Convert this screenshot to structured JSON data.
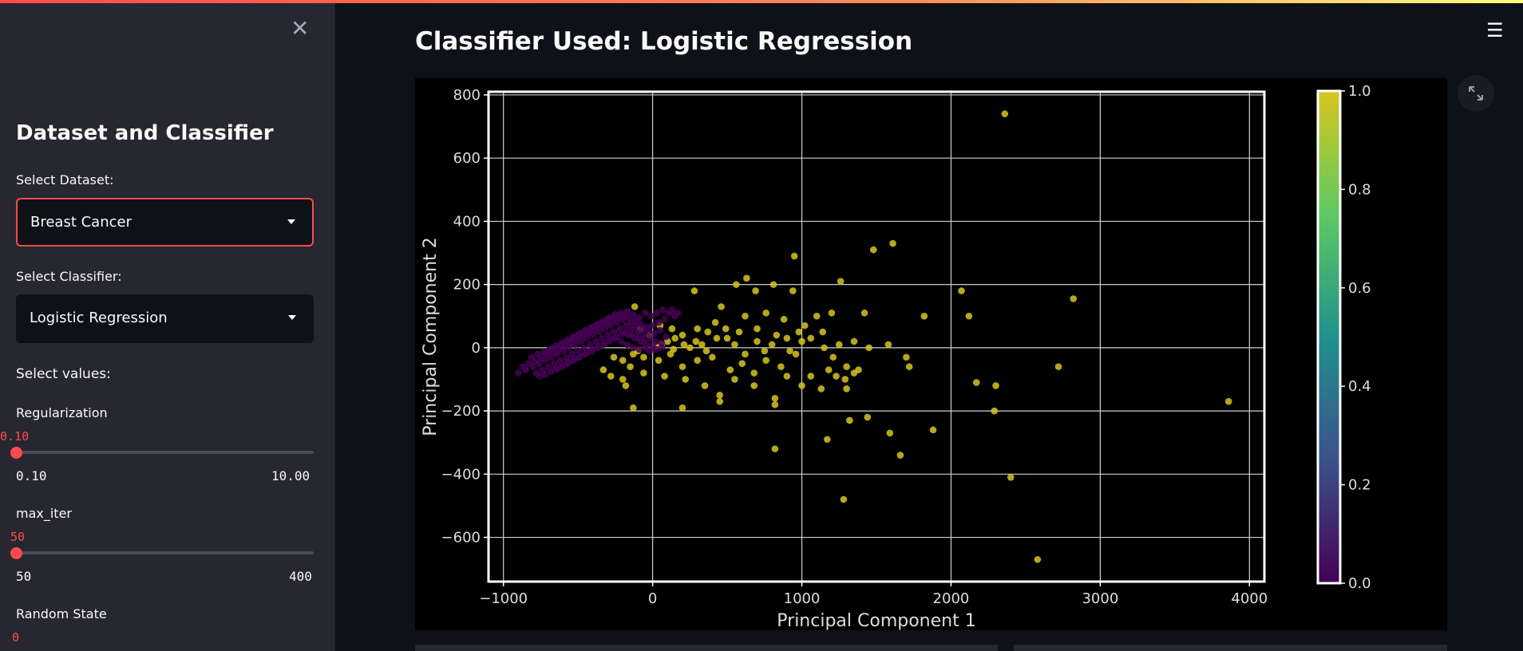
{
  "sidebar": {
    "title": "Dataset and Classifier",
    "dataset_label": "Select Dataset:",
    "dataset_value": "Breast Cancer",
    "classifier_label": "Select Classifier:",
    "classifier_value": "Logistic Regression",
    "values_label": "Select values:",
    "sliders": [
      {
        "label": "Regularization",
        "value": "0.10",
        "min": "0.10",
        "max": "10.00"
      },
      {
        "label": "max_iter",
        "value": "50",
        "min": "50",
        "max": "400"
      },
      {
        "label": "Random State",
        "value": "0"
      }
    ]
  },
  "main": {
    "title": "Classifier Used: Logistic Regression"
  },
  "colors": {
    "accent": "#ff4b4b",
    "sidebar_bg": "#262730",
    "app_bg": "#0e1117"
  },
  "icons": [
    "close-icon",
    "hamburger-menu-icon",
    "expand-icon",
    "caret-down-icon"
  ],
  "chart_data": {
    "type": "scatter",
    "xlabel": "Principal Component 1",
    "ylabel": "Principal Component 2",
    "xlim": [
      -1100,
      4100
    ],
    "ylim": [
      -740,
      810
    ],
    "xticks": [
      -1000,
      0,
      1000,
      2000,
      3000,
      4000
    ],
    "xtick_labels": [
      "−1000",
      "0",
      "1000",
      "2000",
      "3000",
      "4000"
    ],
    "yticks": [
      -600,
      -400,
      -200,
      0,
      200,
      400,
      600,
      800
    ],
    "ytick_labels": [
      "−600",
      "−400",
      "−200",
      "0",
      "200",
      "400",
      "600",
      "800"
    ],
    "grid": true,
    "colorbar": {
      "min": 0.0,
      "max": 1.0,
      "ticks": [
        "0.0",
        "0.2",
        "0.4",
        "0.6",
        "0.8",
        "1.0"
      ],
      "colormap": "viridis"
    },
    "series": [
      {
        "class": 1,
        "color": "#d6c61e",
        "points": [
          [
            2360,
            740
          ],
          [
            1610,
            330
          ],
          [
            1480,
            310
          ],
          [
            950,
            290
          ],
          [
            630,
            220
          ],
          [
            560,
            200
          ],
          [
            810,
            200
          ],
          [
            2820,
            155
          ],
          [
            1260,
            210
          ],
          [
            280,
            180
          ],
          [
            690,
            180
          ],
          [
            940,
            180
          ],
          [
            1820,
            100
          ],
          [
            2070,
            180
          ],
          [
            2120,
            100
          ],
          [
            1420,
            110
          ],
          [
            130,
            60
          ],
          [
            460,
            130
          ],
          [
            620,
            100
          ],
          [
            760,
            110
          ],
          [
            1100,
            100
          ],
          [
            1200,
            110
          ],
          [
            1020,
            70
          ],
          [
            880,
            90
          ],
          [
            420,
            80
          ],
          [
            370,
            50
          ],
          [
            300,
            60
          ],
          [
            200,
            40
          ],
          [
            150,
            30
          ],
          [
            100,
            20
          ],
          [
            60,
            10
          ],
          [
            20,
            5
          ],
          [
            250,
            0
          ],
          [
            330,
            10
          ],
          [
            500,
            30
          ],
          [
            580,
            50
          ],
          [
            700,
            20
          ],
          [
            800,
            10
          ],
          [
            900,
            30
          ],
          [
            1000,
            20
          ],
          [
            1150,
            0
          ],
          [
            1250,
            10
          ],
          [
            1350,
            20
          ],
          [
            1450,
            0
          ],
          [
            1580,
            10
          ],
          [
            -130,
            -20
          ],
          [
            -60,
            -30
          ],
          [
            40,
            -40
          ],
          [
            120,
            -20
          ],
          [
            200,
            -60
          ],
          [
            300,
            -40
          ],
          [
            400,
            -30
          ],
          [
            520,
            -70
          ],
          [
            600,
            -50
          ],
          [
            680,
            -80
          ],
          [
            760,
            -40
          ],
          [
            860,
            -60
          ],
          [
            960,
            -20
          ],
          [
            1060,
            -90
          ],
          [
            1180,
            -70
          ],
          [
            1300,
            -60
          ],
          [
            1380,
            -70
          ],
          [
            1700,
            -30
          ],
          [
            1720,
            -60
          ],
          [
            -150,
            -60
          ],
          [
            -60,
            -80
          ],
          [
            80,
            -90
          ],
          [
            220,
            -100
          ],
          [
            350,
            -120
          ],
          [
            450,
            -150
          ],
          [
            550,
            -100
          ],
          [
            680,
            -120
          ],
          [
            820,
            -160
          ],
          [
            900,
            -90
          ],
          [
            1000,
            -120
          ],
          [
            1130,
            -130
          ],
          [
            1230,
            -90
          ],
          [
            1300,
            -130
          ],
          [
            2720,
            -60
          ],
          [
            2170,
            -110
          ],
          [
            2300,
            -120
          ],
          [
            -200,
            -100
          ],
          [
            -130,
            -190
          ],
          [
            200,
            -190
          ],
          [
            450,
            -170
          ],
          [
            820,
            -180
          ],
          [
            1320,
            -230
          ],
          [
            1440,
            -220
          ],
          [
            1590,
            -270
          ],
          [
            1660,
            -340
          ],
          [
            1880,
            -260
          ],
          [
            2290,
            -200
          ],
          [
            2400,
            -410
          ],
          [
            3860,
            -170
          ],
          [
            1280,
            -480
          ],
          [
            2580,
            -670
          ],
          [
            820,
            -320
          ],
          [
            1170,
            -290
          ],
          [
            -120,
            130
          ],
          [
            -80,
            60
          ],
          [
            -200,
            -40
          ],
          [
            -260,
            -30
          ],
          [
            -330,
            -70
          ],
          [
            -280,
            -90
          ],
          [
            -180,
            -120
          ],
          [
            -100,
            -10
          ],
          [
            -20,
            40
          ],
          [
            50,
            70
          ],
          [
            140,
            -5
          ],
          [
            210,
            10
          ],
          [
            290,
            20
          ],
          [
            360,
            -10
          ],
          [
            430,
            30
          ],
          [
            490,
            60
          ],
          [
            550,
            10
          ],
          [
            620,
            -20
          ],
          [
            700,
            60
          ],
          [
            750,
            -10
          ],
          [
            830,
            40
          ],
          [
            920,
            -10
          ],
          [
            980,
            50
          ],
          [
            1060,
            30
          ],
          [
            1140,
            50
          ],
          [
            1210,
            -30
          ],
          [
            1290,
            -100
          ],
          [
            1350,
            -80
          ]
        ]
      },
      {
        "class": 0,
        "color": "#440154",
        "points": [
          [
            -850,
            -70
          ],
          [
            -800,
            -60
          ],
          [
            -760,
            -50
          ],
          [
            -720,
            -40
          ],
          [
            -680,
            -30
          ],
          [
            -640,
            -20
          ],
          [
            -600,
            -10
          ],
          [
            -560,
            0
          ],
          [
            -520,
            10
          ],
          [
            -480,
            20
          ],
          [
            -440,
            30
          ],
          [
            -400,
            40
          ],
          [
            -360,
            50
          ],
          [
            -320,
            60
          ],
          [
            -280,
            70
          ],
          [
            -240,
            80
          ],
          [
            -200,
            90
          ],
          [
            -160,
            95
          ],
          [
            -120,
            85
          ],
          [
            -80,
            75
          ],
          [
            -40,
            65
          ],
          [
            0,
            70
          ],
          [
            40,
            80
          ],
          [
            80,
            90
          ],
          [
            -830,
            -50
          ],
          [
            -790,
            -45
          ],
          [
            -750,
            -35
          ],
          [
            -710,
            -25
          ],
          [
            -670,
            -15
          ],
          [
            -630,
            -5
          ],
          [
            -590,
            5
          ],
          [
            -550,
            15
          ],
          [
            -510,
            25
          ],
          [
            -470,
            35
          ],
          [
            -430,
            45
          ],
          [
            -390,
            55
          ],
          [
            -350,
            65
          ],
          [
            -310,
            75
          ],
          [
            -270,
            85
          ],
          [
            -230,
            95
          ],
          [
            -190,
            100
          ],
          [
            -150,
            80
          ],
          [
            -110,
            70
          ],
          [
            -70,
            60
          ],
          [
            -30,
            50
          ],
          [
            10,
            45
          ],
          [
            50,
            55
          ],
          [
            90,
            35
          ],
          [
            -780,
            -80
          ],
          [
            -740,
            -70
          ],
          [
            -700,
            -60
          ],
          [
            -660,
            -50
          ],
          [
            -620,
            -40
          ],
          [
            -580,
            -30
          ],
          [
            -540,
            -20
          ],
          [
            -500,
            -10
          ],
          [
            -460,
            0
          ],
          [
            -420,
            10
          ],
          [
            -380,
            20
          ],
          [
            -340,
            30
          ],
          [
            -300,
            40
          ],
          [
            -260,
            50
          ],
          [
            -220,
            60
          ],
          [
            -180,
            70
          ],
          [
            -140,
            60
          ],
          [
            -100,
            50
          ],
          [
            -60,
            40
          ],
          [
            -20,
            30
          ],
          [
            20,
            20
          ],
          [
            60,
            15
          ],
          [
            -810,
            -30
          ],
          [
            -770,
            -20
          ],
          [
            -730,
            -15
          ],
          [
            -690,
            -5
          ],
          [
            -650,
            5
          ],
          [
            -610,
            15
          ],
          [
            -570,
            25
          ],
          [
            -530,
            35
          ],
          [
            -490,
            45
          ],
          [
            -450,
            55
          ],
          [
            -410,
            65
          ],
          [
            -370,
            75
          ],
          [
            -330,
            85
          ],
          [
            -290,
            95
          ],
          [
            -250,
            105
          ],
          [
            -210,
            110
          ],
          [
            -170,
            115
          ],
          [
            -130,
            105
          ],
          [
            -90,
            95
          ],
          [
            -50,
            110
          ],
          [
            -10,
            100
          ],
          [
            30,
            110
          ],
          [
            70,
            120
          ],
          [
            110,
            110
          ],
          [
            150,
            100
          ],
          [
            -760,
            -90
          ],
          [
            -720,
            -85
          ],
          [
            -680,
            -75
          ],
          [
            -640,
            -65
          ],
          [
            -600,
            -55
          ],
          [
            -560,
            -45
          ],
          [
            -520,
            -35
          ],
          [
            -480,
            -25
          ],
          [
            -440,
            -15
          ],
          [
            -400,
            -5
          ],
          [
            -360,
            5
          ],
          [
            -320,
            15
          ],
          [
            -280,
            25
          ],
          [
            -240,
            35
          ],
          [
            -200,
            45
          ],
          [
            -160,
            40
          ],
          [
            -120,
            30
          ],
          [
            -80,
            20
          ],
          [
            -40,
            10
          ],
          [
            0,
            5
          ],
          [
            -700,
            -10
          ],
          [
            -660,
            0
          ],
          [
            -620,
            10
          ],
          [
            -580,
            20
          ],
          [
            -540,
            30
          ],
          [
            -500,
            40
          ],
          [
            -460,
            50
          ],
          [
            -420,
            60
          ],
          [
            -380,
            70
          ],
          [
            -340,
            80
          ],
          [
            -300,
            90
          ],
          [
            -260,
            100
          ],
          [
            -220,
            105
          ],
          [
            -180,
            50
          ],
          [
            -140,
            40
          ],
          [
            -100,
            30
          ],
          [
            -60,
            20
          ],
          [
            -20,
            -10
          ],
          [
            20,
            -5
          ],
          [
            60,
            0
          ],
          [
            -900,
            -80
          ],
          [
            -870,
            -60
          ],
          [
            -650,
            -70
          ],
          [
            -610,
            -60
          ],
          [
            -570,
            -50
          ],
          [
            -530,
            -40
          ],
          [
            -490,
            -30
          ],
          [
            -450,
            -20
          ],
          [
            -410,
            -10
          ],
          [
            -370,
            0
          ],
          [
            -330,
            10
          ],
          [
            -290,
            20
          ],
          [
            -250,
            30
          ],
          [
            -210,
            20
          ],
          [
            -170,
            10
          ],
          [
            -130,
            0
          ],
          [
            -90,
            -5
          ],
          [
            -50,
            0
          ],
          [
            130,
            120
          ],
          [
            170,
            110
          ]
        ]
      }
    ]
  }
}
